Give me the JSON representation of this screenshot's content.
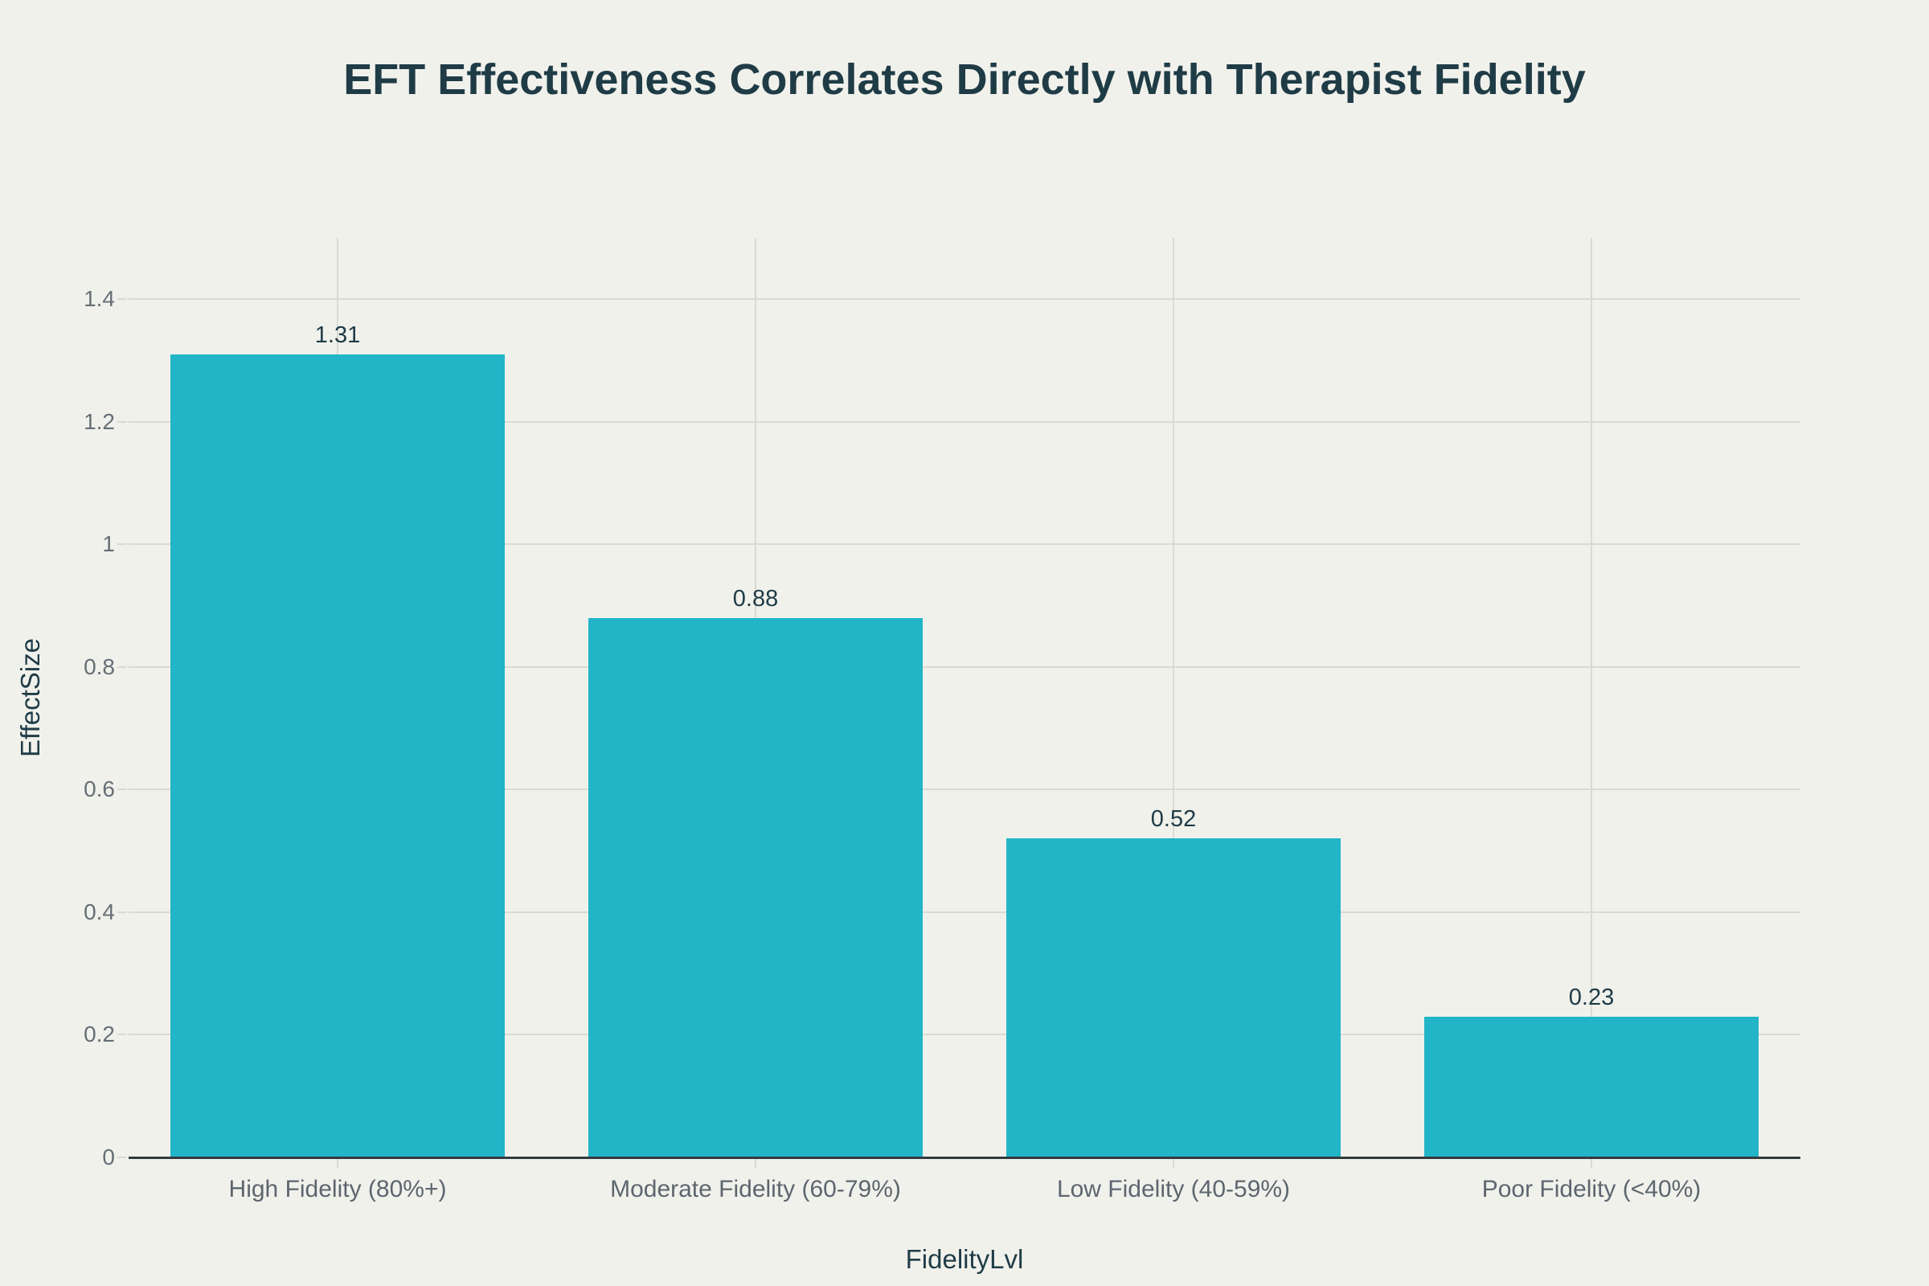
{
  "page": {
    "background": "#f1f1ec"
  },
  "chart_data": {
    "type": "bar",
    "title": "EFT Effectiveness Correlates Directly with Therapist Fidelity",
    "xlabel": "FidelityLvl",
    "ylabel": "EffectSize",
    "categories": [
      "High Fidelity (80%+)",
      "Moderate Fidelity (60-79%)",
      "Low Fidelity (40-59%)",
      "Poor Fidelity (<40%)"
    ],
    "values": [
      1.31,
      0.88,
      0.52,
      0.23
    ],
    "value_labels": [
      "1.31",
      "0.88",
      "0.52",
      "0.23"
    ],
    "ylim": [
      0,
      1.5
    ],
    "yticks": [
      0,
      0.2,
      0.4,
      0.6,
      0.8,
      1,
      1.2,
      1.4
    ],
    "ytick_labels": [
      "0",
      "0.2",
      "0.4",
      "0.6",
      "0.8",
      "1",
      "1.2",
      "1.4"
    ],
    "grid": true,
    "legend": "none",
    "bar_color": "#22b4c7",
    "grid_color": "#d9dad2",
    "axis_line_color": "#333a3e",
    "tick_color": "#666e75",
    "xtick_color": "#5d666e",
    "title_color": "#1f3c46",
    "axis_title_color": "#1f3c46",
    "value_label_color": "#1e3b46"
  }
}
